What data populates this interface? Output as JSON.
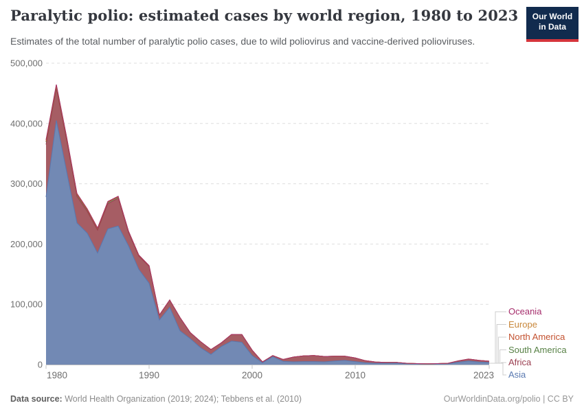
{
  "header": {
    "title": "Paralytic polio: estimated cases by world region, 1980 to 2023",
    "subtitle": "Estimates of the total number of paralytic polio cases, due to wild poliovirus and vaccine-derived polioviruses."
  },
  "logo": {
    "line1": "Our World",
    "line2": "in Data",
    "bg_color": "#112B4E",
    "stripe_color": "#D5353C"
  },
  "footer": {
    "source_label": "Data source:",
    "source_text": " World Health Organization (2019; 2024); Tebbens et al. (2010)",
    "right_text": "OurWorldinData.org/polio | CC BY"
  },
  "chart_data": {
    "type": "area",
    "stacked": true,
    "title": "Paralytic polio: estimated cases by world region, 1980 to 2023",
    "xlabel": "",
    "ylabel": "",
    "ylim": [
      0,
      500000
    ],
    "grid": true,
    "grid_color": "#dedede",
    "axis_text_color": "#6e6e6e",
    "legend_position": "right",
    "x": [
      1980,
      1981,
      1982,
      1983,
      1984,
      1985,
      1986,
      1987,
      1988,
      1989,
      1990,
      1991,
      1992,
      1993,
      1994,
      1995,
      1996,
      1997,
      1998,
      1999,
      2000,
      2001,
      2002,
      2003,
      2004,
      2005,
      2006,
      2007,
      2008,
      2009,
      2010,
      2011,
      2012,
      2013,
      2014,
      2015,
      2016,
      2017,
      2018,
      2019,
      2020,
      2021,
      2022,
      2023
    ],
    "x_ticks": [
      1980,
      1990,
      2000,
      2010,
      2023
    ],
    "x_tick_labels": [
      "1980",
      "1990",
      "2000",
      "2010",
      "2023"
    ],
    "y_ticks": [
      0,
      100000,
      200000,
      300000,
      400000,
      500000
    ],
    "y_tick_labels": [
      "0",
      "100,000",
      "200,000",
      "300,000",
      "400,000",
      "500,000"
    ],
    "legend_order": [
      "Oceania",
      "Europe",
      "North America",
      "South America",
      "Africa",
      "Asia"
    ],
    "series": [
      {
        "name": "Asia",
        "color": "#5878B0",
        "fill": "#7289B4",
        "values": [
          278000,
          405000,
          320000,
          235000,
          218000,
          185000,
          225000,
          230000,
          197000,
          158000,
          135000,
          74000,
          95000,
          56000,
          43000,
          28000,
          17000,
          30000,
          39000,
          37000,
          15000,
          3000,
          13000,
          5500,
          4500,
          5000,
          5000,
          4500,
          6000,
          7000,
          5000,
          3000,
          2200,
          2200,
          2400,
          1600,
          1200,
          900,
          1200,
          1500,
          4000,
          6000,
          4200,
          3500
        ]
      },
      {
        "name": "Africa",
        "color": "#9A3E50",
        "fill": "#A65D64",
        "values": [
          87000,
          53000,
          52000,
          44000,
          36000,
          38000,
          42000,
          46000,
          22000,
          22000,
          28000,
          8000,
          12000,
          22000,
          10000,
          10000,
          8000,
          6000,
          11000,
          13000,
          9000,
          1500,
          2000,
          3000,
          8000,
          9500,
          10000,
          9000,
          8000,
          7000,
          6000,
          3500,
          2000,
          1500,
          1200,
          600,
          500,
          400,
          500,
          700,
          2200,
          3200,
          2800,
          2200
        ]
      },
      {
        "name": "South America",
        "color": "#578145",
        "fill": "#7A9A6A",
        "values": [
          4000,
          3500,
          3000,
          2800,
          2500,
          2200,
          2500,
          2200,
          1800,
          1200,
          800,
          200,
          30,
          10,
          5,
          5,
          5,
          5,
          5,
          5,
          5,
          5,
          5,
          5,
          5,
          5,
          5,
          5,
          5,
          5,
          5,
          5,
          5,
          5,
          5,
          5,
          5,
          5,
          5,
          5,
          5,
          5,
          5,
          5
        ]
      },
      {
        "name": "North America",
        "color": "#C3512F",
        "fill": "#D18973",
        "values": [
          1200,
          900,
          700,
          500,
          400,
          300,
          200,
          150,
          100,
          80,
          60,
          40,
          20,
          10,
          10,
          10,
          10,
          10,
          10,
          10,
          10,
          10,
          10,
          10,
          10,
          10,
          10,
          10,
          10,
          10,
          10,
          10,
          10,
          10,
          10,
          10,
          10,
          10,
          10,
          10,
          10,
          10,
          10,
          10
        ]
      },
      {
        "name": "Europe",
        "color": "#C8873A",
        "fill": "#D6A96B",
        "values": [
          2500,
          2000,
          1800,
          1500,
          1300,
          1100,
          900,
          800,
          700,
          500,
          400,
          300,
          200,
          150,
          100,
          80,
          60,
          50,
          40,
          30,
          20,
          20,
          20,
          20,
          20,
          20,
          20,
          20,
          20,
          20,
          20,
          20,
          20,
          20,
          20,
          20,
          20,
          20,
          20,
          20,
          20,
          20,
          20,
          20
        ]
      },
      {
        "name": "Oceania",
        "color": "#A52C6B",
        "fill": "#BC6B97",
        "values": [
          150,
          130,
          110,
          100,
          90,
          80,
          70,
          60,
          50,
          40,
          30,
          20,
          15,
          10,
          10,
          10,
          10,
          10,
          10,
          10,
          10,
          10,
          10,
          10,
          10,
          10,
          10,
          10,
          10,
          10,
          10,
          10,
          10,
          10,
          10,
          10,
          10,
          10,
          10,
          10,
          10,
          10,
          10,
          10
        ]
      }
    ]
  }
}
